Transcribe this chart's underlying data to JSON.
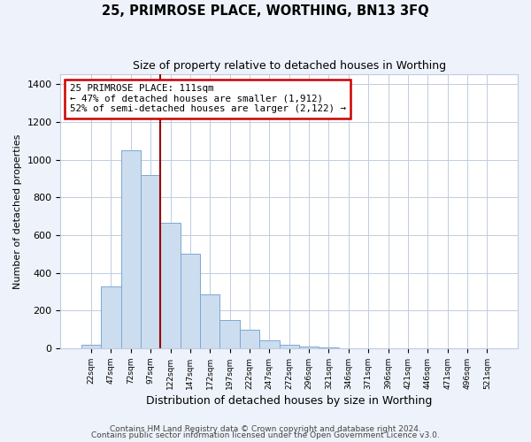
{
  "title": "25, PRIMROSE PLACE, WORTHING, BN13 3FQ",
  "subtitle": "Size of property relative to detached houses in Worthing",
  "xlabel": "Distribution of detached houses by size in Worthing",
  "ylabel": "Number of detached properties",
  "footnote1": "Contains HM Land Registry data © Crown copyright and database right 2024.",
  "footnote2": "Contains public sector information licensed under the Open Government Licence v3.0.",
  "bar_labels": [
    "22sqm",
    "47sqm",
    "72sqm",
    "97sqm",
    "122sqm",
    "147sqm",
    "172sqm",
    "197sqm",
    "222sqm",
    "247sqm",
    "272sqm",
    "296sqm",
    "321sqm",
    "346sqm",
    "371sqm",
    "396sqm",
    "421sqm",
    "446sqm",
    "471sqm",
    "496sqm",
    "521sqm"
  ],
  "bar_values": [
    20,
    330,
    1050,
    920,
    665,
    500,
    285,
    150,
    100,
    40,
    20,
    10,
    5,
    0,
    0,
    0,
    0,
    0,
    0,
    0,
    0
  ],
  "bar_color": "#ccddf0",
  "bar_edge_color": "#7ca8d0",
  "marker_color": "#990000",
  "annotation_line1": "25 PRIMROSE PLACE: 111sqm",
  "annotation_line2": "← 47% of detached houses are smaller (1,912)",
  "annotation_line3": "52% of semi-detached houses are larger (2,122) →",
  "ylim": [
    0,
    1450
  ],
  "yticks": [
    0,
    200,
    400,
    600,
    800,
    1000,
    1200,
    1400
  ],
  "bg_color": "#eef2fa",
  "plot_bg_color": "#ffffff",
  "grid_color": "#c0cce0",
  "title_fontsize": 10.5,
  "subtitle_fontsize": 9,
  "annotation_box_color": "#ffffff",
  "annotation_box_edge": "#cc0000",
  "footnote_color": "#444444"
}
